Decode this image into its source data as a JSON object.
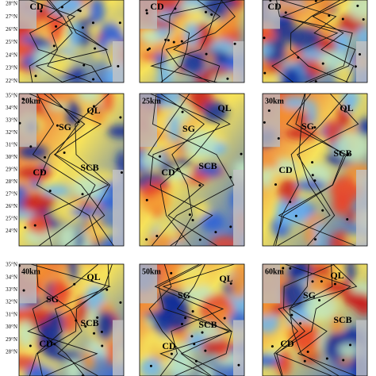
{
  "rows": [
    {
      "lat_labels": [
        "28°N",
        "27°N",
        "26°N",
        "25°N",
        "24°N",
        "23°N",
        "22°N"
      ],
      "panels": [
        {
          "labels": [
            "CD"
          ]
        },
        {
          "labels": [
            "CD"
          ]
        },
        {
          "labels": [
            "CD"
          ]
        }
      ]
    },
    {
      "lat_labels": [
        "35°N",
        "34°N",
        "33°N",
        "32°N",
        "31°N",
        "30°N",
        "29°N",
        "28°N",
        "27°N",
        "26°N",
        "25°N",
        "24°N"
      ],
      "panels": [
        {
          "depth": "20km",
          "labels": [
            "QL",
            "SG",
            "SCB",
            "CD"
          ]
        },
        {
          "depth": "25km",
          "labels": [
            "QL",
            "SG",
            "SCB",
            "CD"
          ]
        },
        {
          "depth": "30km",
          "labels": [
            "QL",
            "SG",
            "SCB",
            "CD"
          ]
        }
      ]
    },
    {
      "lat_labels": [
        "35°N",
        "34°N",
        "33°N",
        "32°N",
        "31°N",
        "30°N",
        "29°N",
        "28°N"
      ],
      "panels": [
        {
          "depth": "40km",
          "labels": [
            "QL",
            "SG",
            "SCB",
            "CD"
          ]
        },
        {
          "depth": "50km",
          "labels": [
            "QL",
            "SG",
            "SCB",
            "CD"
          ]
        },
        {
          "depth": "60km",
          "labels": [
            "QL",
            "SG",
            "SCB",
            "CD"
          ]
        }
      ]
    }
  ]
}
